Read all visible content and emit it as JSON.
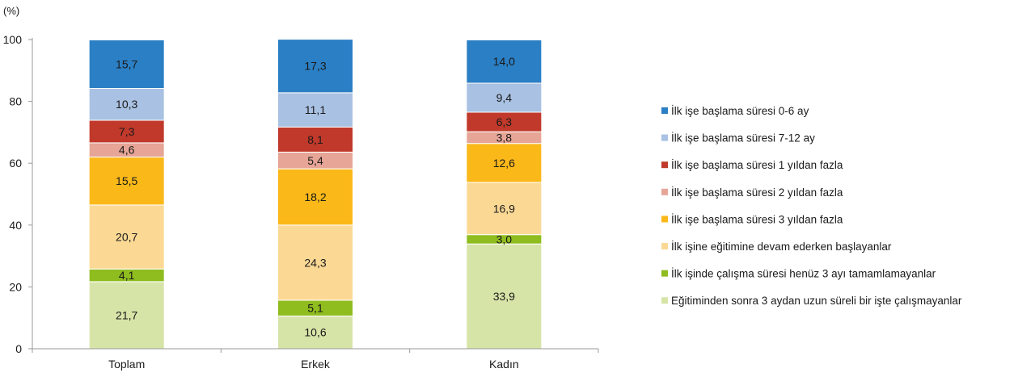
{
  "chart_data": {
    "type": "bar",
    "stacked": true,
    "unit_label": "(%)",
    "ylim": [
      0,
      100
    ],
    "yticks": [
      "0",
      "20",
      "40",
      "60",
      "80",
      "100"
    ],
    "ytick_values": [
      0,
      20,
      40,
      60,
      80,
      100
    ],
    "categories": [
      "Toplam",
      "Erkek",
      "Kadın"
    ],
    "legend_position": "right",
    "grid": false,
    "series": [
      {
        "name": "Eğitiminden sonra 3 aydan uzun süreli bir işte çalışmayanlar",
        "color": "#d7e4a8",
        "values": [
          21.7,
          10.6,
          33.9
        ],
        "labels": [
          "21,7",
          "10,6",
          "33,9"
        ]
      },
      {
        "name": "İlk işinde çalışma süresi henüz 3 ayı tamamlamayanlar",
        "color": "#8fbc1e",
        "values": [
          4.1,
          5.1,
          3.0
        ],
        "labels": [
          "4,1",
          "5,1",
          "3,0"
        ]
      },
      {
        "name": "İlk işine eğitimine devam ederken başlayanlar",
        "color": "#fbd995",
        "values": [
          20.7,
          24.3,
          16.9
        ],
        "labels": [
          "20,7",
          "24,3",
          "16,9"
        ]
      },
      {
        "name": "İlk işe başlama süresi 3 yıldan fazla",
        "color": "#fbb819",
        "values": [
          15.5,
          18.2,
          12.6
        ],
        "labels": [
          "15,5",
          "18,2",
          "12,6"
        ]
      },
      {
        "name": "İlk işe başlama süresi 2 yıldan fazla",
        "color": "#e6a596",
        "values": [
          4.6,
          5.4,
          3.8
        ],
        "labels": [
          "4,6",
          "5,4",
          "3,8"
        ]
      },
      {
        "name": "İlk işe başlama süresi 1 yıldan fazla",
        "color": "#c0392b",
        "values": [
          7.3,
          8.1,
          6.3
        ],
        "labels": [
          "7,3",
          "8,1",
          "6,3"
        ]
      },
      {
        "name": "İlk işe başlama süresi 7-12 ay",
        "color": "#a9c1e2",
        "values": [
          10.3,
          11.1,
          9.4
        ],
        "labels": [
          "10,3",
          "11,1",
          "9,4"
        ]
      },
      {
        "name": "İlk işe başlama süresi 0-6 ay",
        "color": "#2b7fc4",
        "values": [
          15.7,
          17.3,
          14.0
        ],
        "labels": [
          "15,7",
          "17,3",
          "14,0"
        ]
      }
    ]
  }
}
